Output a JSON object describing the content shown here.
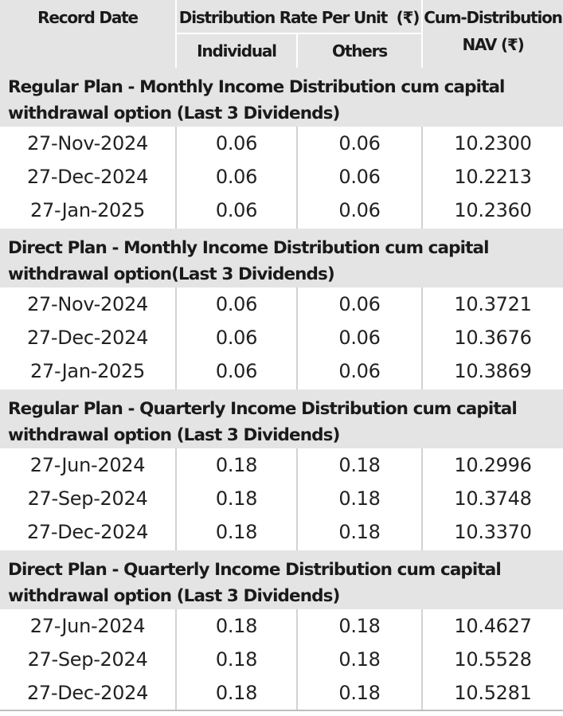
{
  "header": {
    "record_date": "Record Date",
    "distribution_rate": "Distribution Rate Per Unit  (₹)",
    "individual": "Individual",
    "others": "Others",
    "nav_line1": "Cum-Distribution",
    "nav_line2": "NAV (₹)"
  },
  "sections": [
    {
      "title": "Regular Plan - Monthly Income Distribution cum capital\nwithdrawal option (Last 3 Dividends)",
      "rows": [
        {
          "date": "27-Nov-2024",
          "individual": "0.06",
          "others": "0.06",
          "nav": "10.2300"
        },
        {
          "date": "27-Dec-2024",
          "individual": "0.06",
          "others": "0.06",
          "nav": "10.2213"
        },
        {
          "date": "27-Jan-2025",
          "individual": "0.06",
          "others": "0.06",
          "nav": "10.2360"
        }
      ]
    },
    {
      "title": "Direct Plan - Monthly Income Distribution cum capital\nwithdrawal option(Last 3 Dividends)",
      "rows": [
        {
          "date": "27-Nov-2024",
          "individual": "0.06",
          "others": "0.06",
          "nav": "10.3721"
        },
        {
          "date": "27-Dec-2024",
          "individual": "0.06",
          "others": "0.06",
          "nav": "10.3676"
        },
        {
          "date": "27-Jan-2025",
          "individual": "0.06",
          "others": "0.06",
          "nav": "10.3869"
        }
      ]
    },
    {
      "title": "Regular Plan - Quarterly Income Distribution cum capital\nwithdrawal option (Last 3 Dividends)",
      "rows": [
        {
          "date": "27-Jun-2024",
          "individual": "0.18",
          "others": "0.18",
          "nav": "10.2996"
        },
        {
          "date": "27-Sep-2024",
          "individual": "0.18",
          "others": "0.18",
          "nav": "10.3748"
        },
        {
          "date": "27-Dec-2024",
          "individual": "0.18",
          "others": "0.18",
          "nav": "10.3370"
        }
      ]
    },
    {
      "title": "Direct Plan - Quarterly Income Distribution cum capital\nwithdrawal option (Last 3 Dividends)",
      "rows": [
        {
          "date": "27-Jun-2024",
          "individual": "0.18",
          "others": "0.18",
          "nav": "10.4627"
        },
        {
          "date": "27-Sep-2024",
          "individual": "0.18",
          "others": "0.18",
          "nav": "10.5528"
        },
        {
          "date": "27-Dec-2024",
          "individual": "0.18",
          "others": "0.18",
          "nav": "10.5281"
        }
      ]
    }
  ]
}
